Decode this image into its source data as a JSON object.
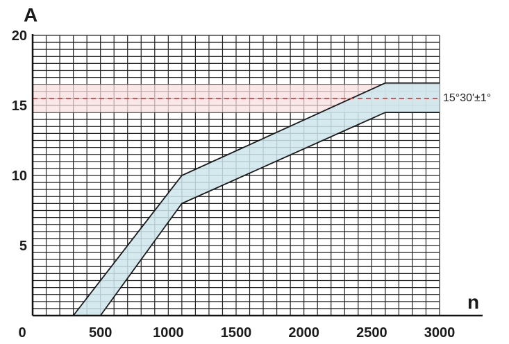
{
  "chart_data": {
    "type": "area",
    "title": "",
    "xlabel": "n",
    "ylabel": "A",
    "xlim": [
      0,
      3000
    ],
    "ylim": [
      0,
      20
    ],
    "grid": true,
    "x_ticks": [
      "0",
      "500",
      "1000",
      "1500",
      "2000",
      "2500",
      "3000"
    ],
    "x_tick_values": [
      0,
      500,
      1000,
      1500,
      2000,
      2500,
      3000
    ],
    "y_ticks": [
      "5",
      "10",
      "15",
      "20"
    ],
    "y_tick_values": [
      5,
      10,
      15,
      20
    ],
    "series": [
      {
        "role": "upper",
        "x": [
          300,
          1100,
          2600,
          3000
        ],
        "y": [
          0,
          10,
          16.6,
          16.6
        ]
      },
      {
        "role": "lower",
        "x": [
          500,
          1100,
          2600,
          3000
        ],
        "y": [
          0,
          8,
          14.5,
          14.5
        ]
      }
    ],
    "band_fill": "#cde6ec",
    "line_color": "#1a1a1a",
    "reference_line": {
      "y": 15.5,
      "color": "#e03030",
      "style": "dashed",
      "label": "15°30'±1°"
    },
    "reference_band": {
      "y": [
        14.5,
        16.5
      ],
      "color": "#f8dddd"
    }
  }
}
